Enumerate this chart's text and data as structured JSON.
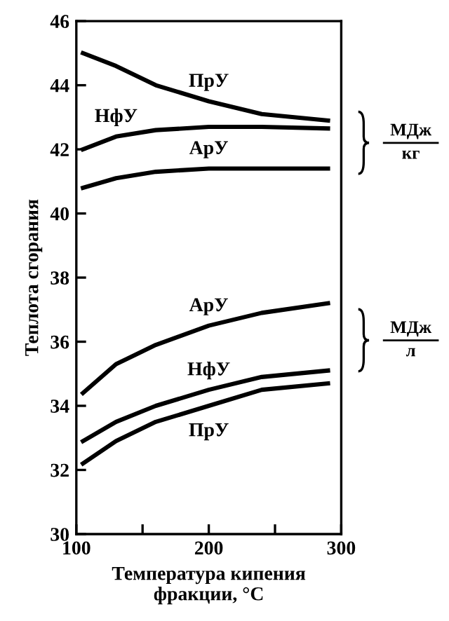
{
  "chart_data": {
    "type": "line",
    "xlabel": "Температура кипения\nфракции, °C",
    "ylabel": "Теплота сгорания",
    "xlim": [
      100,
      300
    ],
    "xticks": [
      100,
      {
        "value": 150,
        "label": null
      },
      200,
      {
        "value": 250,
        "label": null
      },
      300
    ],
    "ylim": [
      30,
      46
    ],
    "yticks": [
      30,
      32,
      34,
      36,
      38,
      40,
      42,
      44,
      46
    ],
    "grid": false,
    "legend": false,
    "marker": "none",
    "line_style": "solid",
    "x": [
      105,
      130,
      160,
      200,
      240,
      290
    ],
    "series": [
      {
        "name": "ПрУ",
        "color": "#000000",
        "values": [
          45.0,
          44.6,
          44.0,
          43.5,
          43.1,
          42.9
        ]
      },
      {
        "name": "НфУ",
        "color": "#000000",
        "values": [
          42.0,
          42.4,
          42.6,
          42.7,
          42.7,
          42.65
        ]
      },
      {
        "name": "АрУ",
        "color": "#000000",
        "values": [
          40.8,
          41.1,
          41.3,
          41.4,
          41.4,
          41.4
        ]
      },
      {
        "name": "АрУ",
        "color": "#000000",
        "values": [
          34.4,
          35.3,
          35.9,
          36.5,
          36.9,
          37.2
        ]
      },
      {
        "name": "НфУ",
        "color": "#000000",
        "values": [
          32.9,
          33.5,
          34.0,
          34.5,
          34.9,
          35.1
        ]
      },
      {
        "name": "ПрУ",
        "color": "#000000",
        "values": [
          32.2,
          32.9,
          33.5,
          34.0,
          34.5,
          34.7
        ]
      }
    ],
    "annotations": [
      "МДж",
      "кг",
      "МДж",
      "л"
    ]
  }
}
